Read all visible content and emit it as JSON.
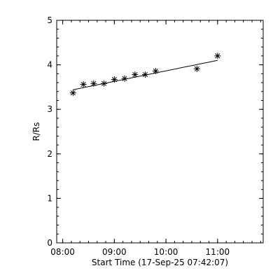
{
  "colors": {
    "background": "#ffffff",
    "foreground": "#000000"
  },
  "chart_data": {
    "type": "scatter",
    "title": "",
    "xlabel": "Start Time (17-Sep-25 07:42:07)",
    "ylabel": "R/Rs",
    "x_unit": "time of day (HH:MM, 17-Sep-25)",
    "xlim": [
      "07:53",
      "11:53"
    ],
    "ylim": [
      0,
      5
    ],
    "x_ticks": [
      "08:00",
      "09:00",
      "10:00",
      "11:00"
    ],
    "y_ticks": [
      "0",
      "1",
      "2",
      "3",
      "4",
      "5"
    ],
    "x_minor_tick_step_minutes": 10,
    "y_minor_tick_step": 0.2,
    "grid": false,
    "legend": "none",
    "marker": "asterisk",
    "series": [
      {
        "x": [
          "08:12",
          "08:24",
          "08:36",
          "08:48",
          "09:00",
          "09:12",
          "09:24",
          "09:36",
          "09:48",
          "10:36",
          "11:00"
        ],
        "y": [
          3.37,
          3.56,
          3.58,
          3.58,
          3.67,
          3.69,
          3.78,
          3.78,
          3.86,
          3.91,
          4.2
        ]
      }
    ],
    "fit_line": {
      "x": [
        "08:12",
        "11:00"
      ],
      "y": [
        3.44,
        4.1
      ]
    }
  }
}
